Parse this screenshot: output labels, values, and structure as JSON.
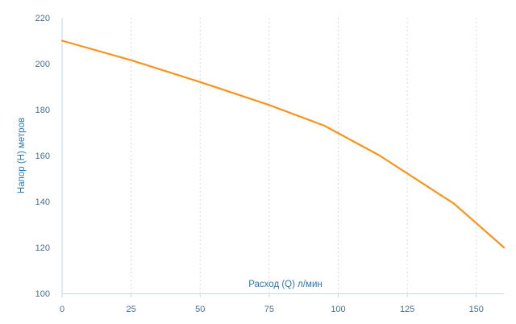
{
  "chart_data": {
    "type": "line",
    "title": "",
    "xlabel": "Расход (Q) л/мин",
    "ylabel": "Напор (H) метров",
    "xlim": [
      0,
      160
    ],
    "ylim": [
      100,
      220
    ],
    "x_ticks": [
      0,
      25,
      50,
      75,
      100,
      125,
      150
    ],
    "y_ticks": [
      100,
      120,
      140,
      160,
      180,
      200,
      220
    ],
    "grid": "vertical dashed",
    "legend": "none",
    "series": [
      {
        "color": "#f7941d",
        "points": [
          [
            0,
            210
          ],
          [
            25,
            201.5
          ],
          [
            50,
            192
          ],
          [
            75,
            182
          ],
          [
            95,
            173
          ],
          [
            115,
            160
          ],
          [
            142,
            139
          ],
          [
            160,
            120
          ]
        ]
      }
    ]
  },
  "colors": {
    "line": "#f7941d",
    "grid": "#cfdde8",
    "axis": "#c9d9e6",
    "tick_text": "#4a6f8f",
    "axis_title": "#2f77b0"
  }
}
